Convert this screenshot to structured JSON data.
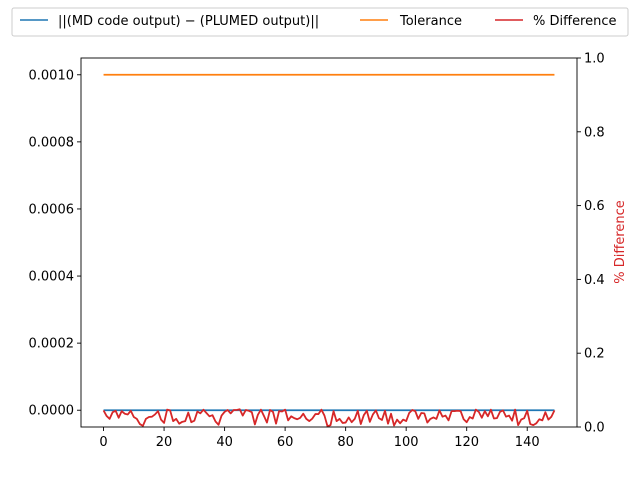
{
  "chart_data": {
    "type": "line",
    "legend": {
      "placement": "top-center",
      "columns": 3,
      "entries": [
        {
          "label": "||(MD code output) − (PLUMED output)||",
          "color": "#1f77b4"
        },
        {
          "label": "Tolerance",
          "color": "#ff7f0e"
        },
        {
          "label": "% Difference",
          "color": "#d62728"
        }
      ]
    },
    "x_axis": {
      "range": [
        -7.45,
        156.45
      ],
      "ticks": [
        0,
        20,
        40,
        60,
        80,
        100,
        120,
        140
      ],
      "tick_labels": [
        "0",
        "20",
        "40",
        "60",
        "80",
        "100",
        "120",
        "140"
      ]
    },
    "y_left": {
      "range": [
        -5e-05,
        0.00105
      ],
      "ticks": [
        0.0,
        0.0002,
        0.0004,
        0.0006,
        0.0008,
        0.001
      ],
      "tick_labels": [
        "0.0000",
        "0.0002",
        "0.0004",
        "0.0006",
        "0.0008",
        "0.0010"
      ]
    },
    "y_right": {
      "label": "% Difference",
      "label_color": "#d62728",
      "range": [
        0.0,
        1.0
      ],
      "ticks": [
        0.0,
        0.2,
        0.4,
        0.6,
        0.8,
        1.0
      ],
      "tick_labels": [
        "0.0",
        "0.2",
        "0.4",
        "0.6",
        "0.8",
        "1.0"
      ]
    },
    "series": [
      {
        "name": "||(MD code output) − (PLUMED output)||",
        "axis": "left",
        "color": "#1f77b4",
        "x": [
          0,
          149
        ],
        "y": [
          0.0,
          0.0
        ]
      },
      {
        "name": "Tolerance",
        "axis": "left",
        "color": "#ff7f0e",
        "x": [
          0,
          149
        ],
        "y": [
          0.001,
          0.001
        ]
      },
      {
        "name": "% Difference",
        "axis": "right",
        "color": "#d62728",
        "x_start": 0,
        "x_step": 1,
        "y": [
          0.045,
          0.03,
          0.022,
          0.04,
          0.044,
          0.025,
          0.043,
          0.036,
          0.034,
          0.044,
          0.027,
          0.022,
          0.008,
          0.003,
          0.022,
          0.027,
          0.028,
          0.034,
          0.043,
          0.02,
          0.011,
          0.047,
          0.045,
          0.016,
          0.022,
          0.009,
          0.014,
          0.016,
          0.039,
          0.013,
          0.017,
          0.042,
          0.037,
          0.047,
          0.038,
          0.029,
          0.032,
          0.015,
          0.006,
          0.031,
          0.041,
          0.046,
          0.037,
          0.046,
          0.046,
          0.048,
          0.031,
          0.046,
          0.044,
          0.04,
          0.007,
          0.033,
          0.047,
          0.03,
          0.012,
          0.046,
          0.041,
          0.009,
          0.043,
          0.042,
          0.047,
          0.018,
          0.029,
          0.024,
          0.021,
          0.025,
          0.036,
          0.022,
          0.016,
          0.023,
          0.035,
          0.035,
          0.047,
          0.031,
          0.002,
          0.005,
          0.043,
          0.016,
          0.022,
          0.011,
          0.012,
          0.026,
          0.013,
          0.022,
          0.044,
          0.008,
          0.032,
          0.044,
          0.014,
          0.034,
          0.045,
          0.024,
          0.019,
          0.044,
          0.009,
          0.036,
          0.004,
          0.02,
          0.01,
          0.02,
          0.016,
          0.038,
          0.046,
          0.043,
          0.022,
          0.038,
          0.037,
          0.012,
          0.022,
          0.026,
          0.022,
          0.045,
          0.028,
          0.031,
          0.018,
          0.043,
          0.043,
          0.044,
          0.043,
          0.021,
          0.013,
          0.027,
          0.023,
          0.047,
          0.041,
          0.025,
          0.043,
          0.029,
          0.047,
          0.023,
          0.024,
          0.041,
          0.045,
          0.028,
          0.031,
          0.017,
          0.047,
          0.005,
          0.02,
          0.024,
          0.044,
          0.008,
          0.005,
          0.01,
          0.021,
          0.018,
          0.04,
          0.02,
          0.028,
          0.045
        ]
      }
    ]
  }
}
